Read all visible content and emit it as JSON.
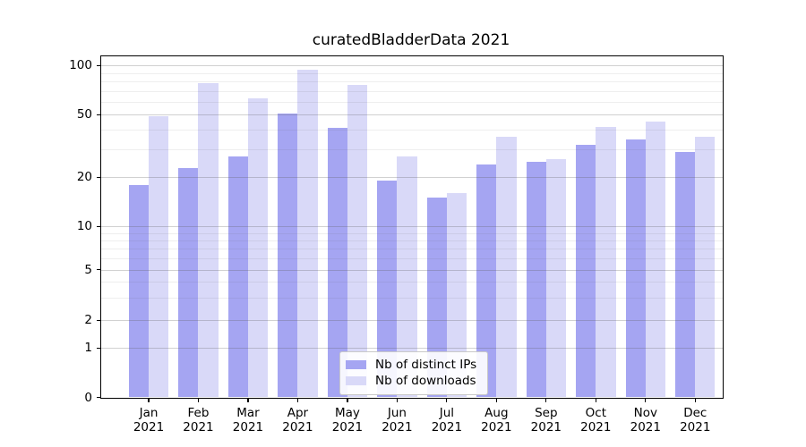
{
  "title": "curatedBladderData 2021",
  "chart_data": {
    "type": "bar",
    "title": "curatedBladderData 2021",
    "categories": [
      "Jan 2021",
      "Feb 2021",
      "Mar 2021",
      "Apr 2021",
      "May 2021",
      "Jun 2021",
      "Jul 2021",
      "Aug 2021",
      "Sep 2021",
      "Oct 2021",
      "Nov 2021",
      "Dec 2021"
    ],
    "months": [
      "Jan",
      "Feb",
      "Mar",
      "Apr",
      "May",
      "Jun",
      "Jul",
      "Aug",
      "Sep",
      "Oct",
      "Nov",
      "Dec"
    ],
    "year": "2021",
    "series": [
      {
        "key": "distinct-ips",
        "name": "Nb of distinct IPs",
        "color": "#a5a5f2",
        "values": [
          18,
          23,
          27,
          51,
          41,
          19,
          15,
          24,
          25,
          32,
          35,
          29
        ]
      },
      {
        "key": "downloads",
        "name": "Nb of downloads",
        "color": "#d9d9f8",
        "values": [
          49,
          78,
          63,
          94,
          76,
          27,
          16,
          36,
          26,
          42,
          45,
          36
        ]
      }
    ],
    "yscale": "symlog",
    "ylim": [
      0,
      110
    ],
    "y_ticks": [
      0,
      1,
      2,
      5,
      10,
      20,
      50,
      100
    ],
    "y_minor_ticks": [
      3,
      4,
      6,
      7,
      8,
      9,
      30,
      40,
      60,
      70,
      80,
      90
    ],
    "grid": "both",
    "legend_position": "lower center",
    "colors": {
      "background": "#ffffff",
      "spine": "#000000",
      "grid_major": "#d1d1d1",
      "grid_minor": "#e9e9e9",
      "tick_label": "#000000"
    }
  }
}
